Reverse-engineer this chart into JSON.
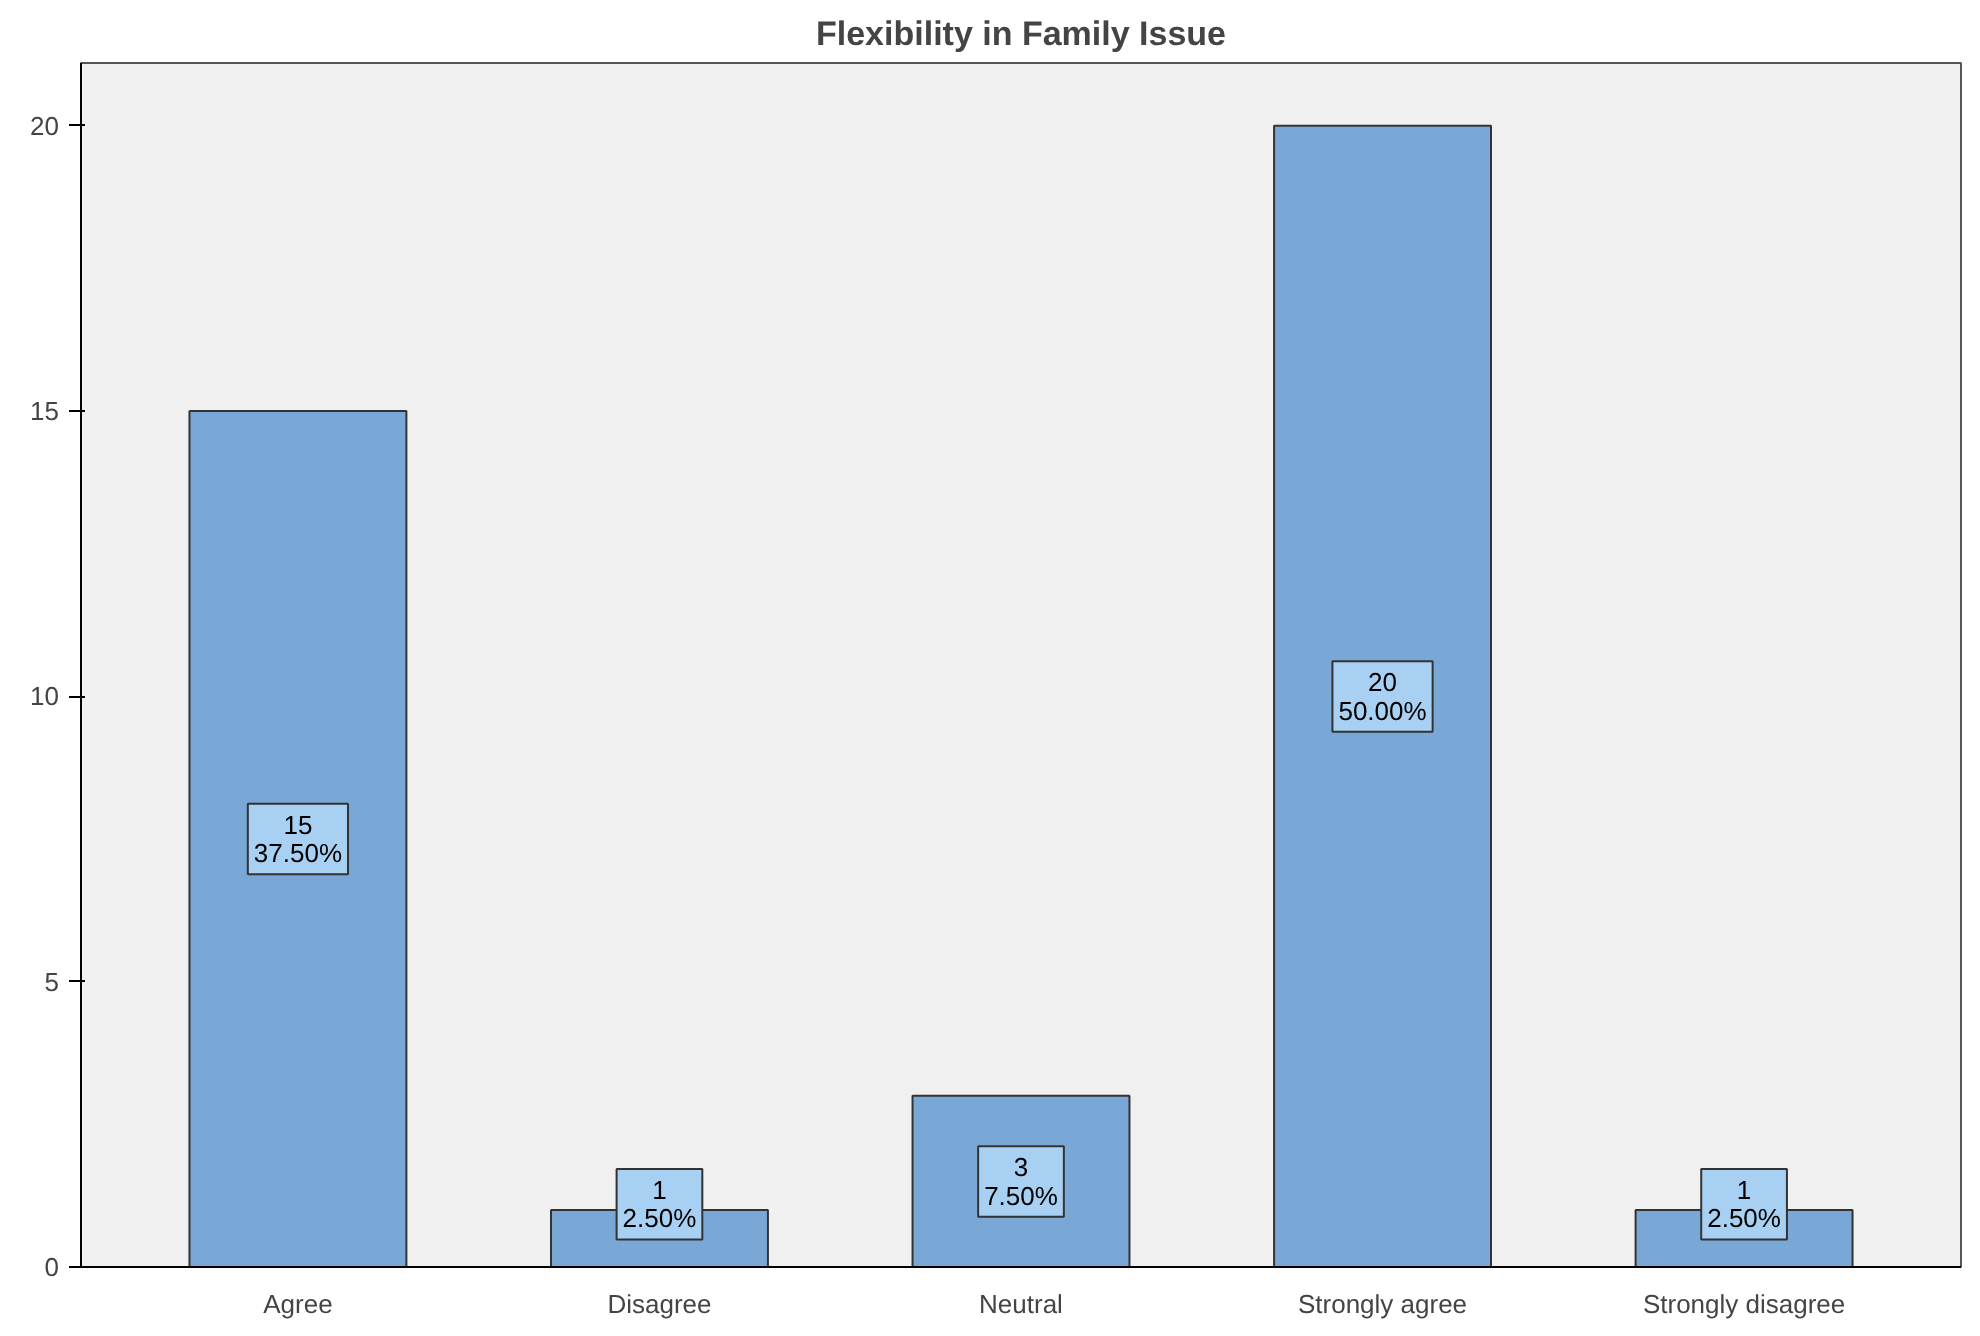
{
  "chart_data": {
    "type": "bar",
    "title": "Flexibility in Family Issue",
    "categories": [
      "Agree",
      "Disagree",
      "Neutral",
      "Strongly agree",
      "Strongly disagree"
    ],
    "values": [
      15,
      1,
      3,
      20,
      1
    ],
    "value_labels": [
      "15\n37.50%",
      "1\n2.50%",
      "3\n7.50%",
      "20\n50.00%",
      "1\n2.50%"
    ],
    "color": "#79a8d6",
    "ylim": [
      0,
      21.1
    ],
    "yticks": [
      0,
      5,
      10,
      15,
      20
    ],
    "grid": false
  }
}
